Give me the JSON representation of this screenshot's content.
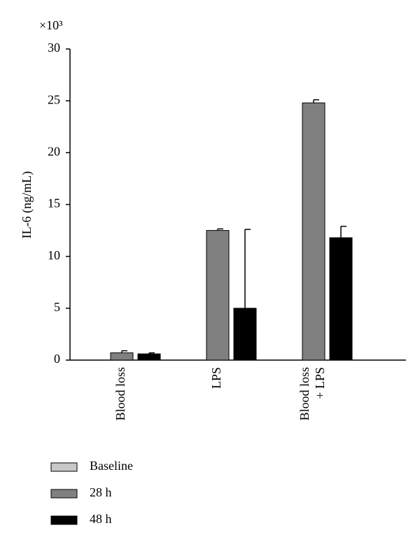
{
  "chart_data": {
    "type": "bar",
    "y_multiplier": "×10³",
    "y_label": "IL-6 (ng/mL)",
    "categories": [
      "Blood loss",
      "LPS",
      "Blood loss + LPS"
    ],
    "series": [
      {
        "name": "Baseline",
        "color": "#c8c8c8",
        "values": [
          0,
          0,
          0
        ]
      },
      {
        "name": "28 h",
        "color": "#808080",
        "values": [
          0.7,
          12.5,
          24.8
        ],
        "errors": [
          0.2,
          0.15,
          0.3
        ]
      },
      {
        "name": "48 h",
        "color": "#000000",
        "values": [
          0.6,
          5.0,
          11.8
        ],
        "errors": [
          0.1,
          7.6,
          1.1
        ]
      }
    ],
    "ylim": [
      0,
      30
    ],
    "yticks": [
      0,
      5,
      10,
      15,
      20,
      25,
      30
    ],
    "legend": "bottom-left"
  }
}
